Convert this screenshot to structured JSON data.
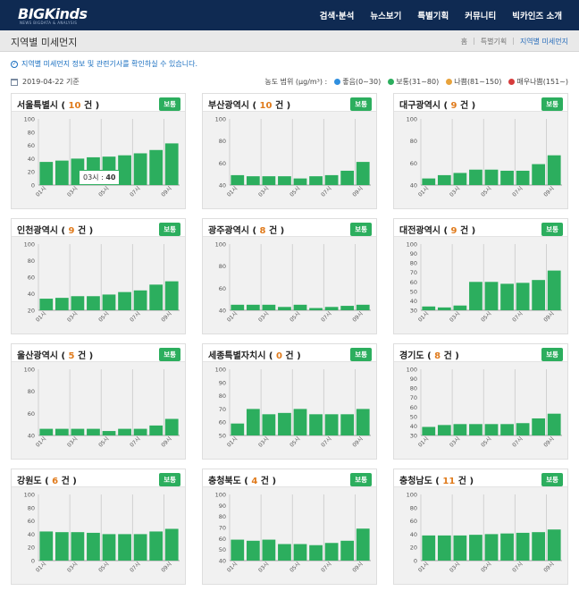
{
  "header": {
    "logo": "BIGKinds",
    "logo_sub": "NEWS BIGDATA & ANALYSIS",
    "nav": [
      "검색·분석",
      "뉴스보기",
      "특별기획",
      "커뮤니티",
      "빅카인즈 소개"
    ]
  },
  "titlebar": {
    "title": "지역별 미세먼지",
    "breadcrumb": [
      "홈",
      "특별기획",
      "지역별 미세먼지"
    ]
  },
  "notice": "지역별 미세먼지 정보 및 관련기사를 확인하실 수 있습니다.",
  "info": {
    "date": "2019-04-22 기준",
    "legend_title": "농도 범위 (µg/m³) :",
    "legend": [
      {
        "label": "좋음(0~30)",
        "color": "#2f8fdf"
      },
      {
        "label": "보통(31~80)",
        "color": "#2cae5e"
      },
      {
        "label": "나쁨(81~150)",
        "color": "#e8a33c"
      },
      {
        "label": "매우나쁨(151~)",
        "color": "#d63c3c"
      }
    ]
  },
  "badge_label": "보통",
  "count_suffix": "건",
  "tooltip": {
    "label": "03시 :",
    "value": "40"
  },
  "regions": [
    {
      "name": "서울특별시",
      "count": "10",
      "ylim": [
        0,
        100
      ],
      "ticks": [
        0,
        20,
        40,
        60,
        80,
        100
      ],
      "values": [
        35,
        37,
        40,
        42,
        43,
        45,
        48,
        53,
        63
      ]
    },
    {
      "name": "부산광역시",
      "count": "10",
      "ylim": [
        40,
        100
      ],
      "ticks": [
        40,
        60,
        80,
        100
      ],
      "values": [
        49,
        48,
        48,
        48,
        46,
        48,
        49,
        53,
        61
      ]
    },
    {
      "name": "대구광역시",
      "count": "9",
      "ylim": [
        40,
        100
      ],
      "ticks": [
        40,
        60,
        80,
        100
      ],
      "values": [
        46,
        49,
        51,
        54,
        54,
        53,
        53,
        59,
        67
      ]
    },
    {
      "name": "인천광역시",
      "count": "9",
      "ylim": [
        20,
        100
      ],
      "ticks": [
        20,
        40,
        60,
        80,
        100
      ],
      "values": [
        34,
        35,
        37,
        37,
        39,
        42,
        44,
        51,
        55
      ]
    },
    {
      "name": "광주광역시",
      "count": "8",
      "ylim": [
        40,
        100
      ],
      "ticks": [
        40,
        60,
        80,
        100
      ],
      "values": [
        45,
        45,
        45,
        43,
        45,
        42,
        43,
        44,
        45
      ]
    },
    {
      "name": "대전광역시",
      "count": "9",
      "ylim": [
        30,
        100
      ],
      "ticks": [
        30,
        40,
        50,
        60,
        70,
        80,
        90,
        100
      ],
      "values": [
        34,
        33,
        35,
        60,
        60,
        58,
        59,
        62,
        72
      ]
    },
    {
      "name": "울산광역시",
      "count": "5",
      "ylim": [
        40,
        100
      ],
      "ticks": [
        40,
        60,
        80,
        100
      ],
      "values": [
        46,
        46,
        46,
        46,
        44,
        46,
        46,
        49,
        55
      ]
    },
    {
      "name": "세종특별자치시",
      "count": "0",
      "ylim": [
        50,
        100
      ],
      "ticks": [
        50,
        60,
        70,
        80,
        90,
        100
      ],
      "values": [
        59,
        70,
        66,
        67,
        70,
        66,
        66,
        66,
        70
      ]
    },
    {
      "name": "경기도",
      "count": "8",
      "ylim": [
        30,
        100
      ],
      "ticks": [
        30,
        40,
        50,
        60,
        70,
        80,
        90,
        100
      ],
      "values": [
        39,
        41,
        42,
        42,
        42,
        42,
        43,
        48,
        53
      ]
    },
    {
      "name": "강원도",
      "count": "6",
      "ylim": [
        0,
        100
      ],
      "ticks": [
        0,
        20,
        40,
        60,
        80,
        100
      ],
      "values": [
        44,
        43,
        43,
        42,
        40,
        40,
        40,
        44,
        48
      ]
    },
    {
      "name": "충청북도",
      "count": "4",
      "ylim": [
        40,
        100
      ],
      "ticks": [
        40,
        50,
        60,
        70,
        80,
        90,
        100
      ],
      "values": [
        59,
        58,
        59,
        55,
        55,
        54,
        56,
        58,
        69
      ]
    },
    {
      "name": "충청남도",
      "count": "11",
      "ylim": [
        0,
        100
      ],
      "ticks": [
        0,
        20,
        40,
        60,
        80,
        100
      ],
      "values": [
        38,
        38,
        38,
        39,
        40,
        41,
        42,
        43,
        47
      ]
    }
  ],
  "x_ticks": [
    "01시",
    "03시",
    "05시",
    "07시",
    "09시"
  ]
}
